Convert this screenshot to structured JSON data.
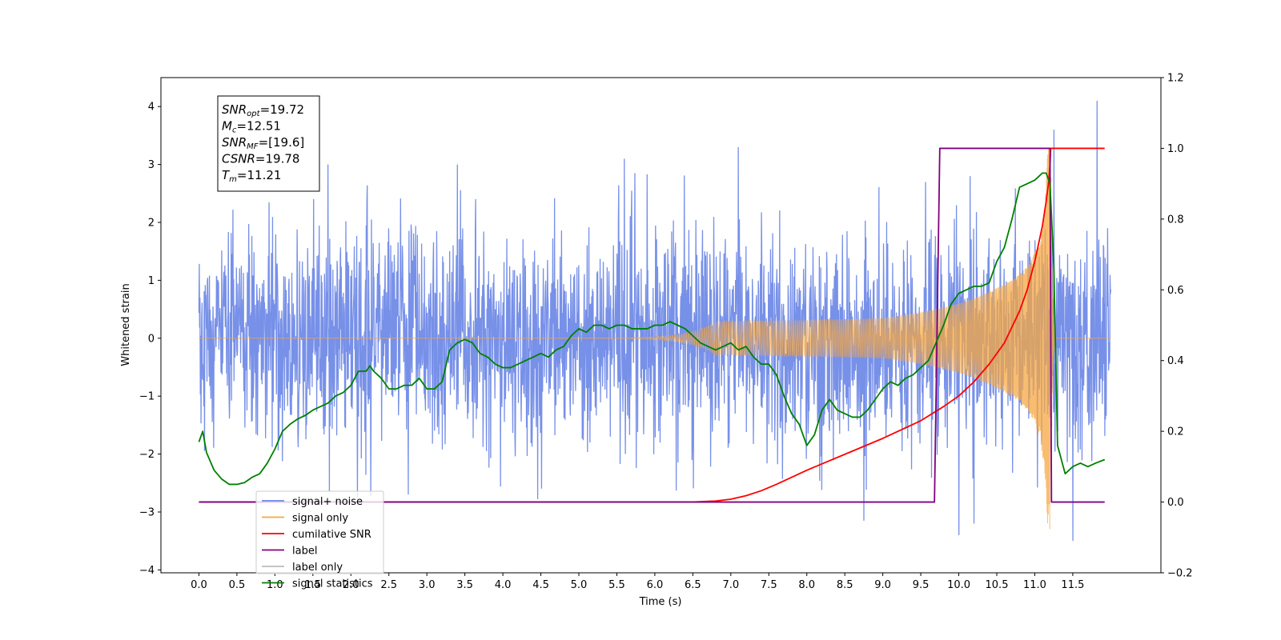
{
  "chart_data": {
    "type": "line",
    "title": "",
    "xlabel": "Time (s)",
    "ylabel": "Whitened strain",
    "ylabel_right": "",
    "xlim": [
      -0.5,
      12.66
    ],
    "ylim": [
      -4.05,
      4.5
    ],
    "ylim_right": [
      -0.2,
      1.2
    ],
    "x_ticks": [
      "0.0",
      "0.5",
      "1.0",
      "1.5",
      "2.0",
      "2.5",
      "3.0",
      "3.5",
      "4.0",
      "4.5",
      "5.0",
      "5.5",
      "6.0",
      "6.5",
      "7.0",
      "7.5",
      "8.0",
      "8.5",
      "9.0",
      "9.5",
      "10.0",
      "10.5",
      "11.0",
      "11.5"
    ],
    "y_ticks": [
      "−4",
      "−3",
      "−2",
      "−1",
      "0",
      "1",
      "2",
      "3",
      "4"
    ],
    "y_ticks_right": [
      "−0.2",
      "0.0",
      "0.2",
      "0.4",
      "0.6",
      "0.8",
      "1.0",
      "1.2"
    ],
    "grid": false,
    "legend_position": "lower-left",
    "annotation": {
      "lines": [
        {
          "base": "SNR",
          "sub": "opt",
          "rest": "=19.72"
        },
        {
          "base": "M",
          "sub": "c",
          "rest": "=12.51"
        },
        {
          "base": "SNR",
          "sub": "MF",
          "rest": "=[19.6]"
        },
        {
          "base": "CSNR",
          "sub": "",
          "rest": "=19.78"
        },
        {
          "base": "T",
          "sub": "m",
          "rest": "=11.21"
        }
      ]
    },
    "series": [
      {
        "name": "signal+ noise",
        "color": "#6b87e6",
        "axis": "left",
        "style": "noise",
        "t_start": 0.0,
        "t_end": 12.0,
        "sigma": 0.9,
        "peaks": [
          [
            1.7,
            3.0
          ],
          [
            3.4,
            3.0
          ],
          [
            5.6,
            3.1
          ],
          [
            7.1,
            3.3
          ],
          [
            10.15,
            2.8
          ],
          [
            11.25,
            3.6
          ],
          [
            11.82,
            4.1
          ],
          [
            10.0,
            -3.4
          ],
          [
            11.5,
            -3.5
          ],
          [
            8.75,
            -3.15
          ],
          [
            10.2,
            -3.2
          ]
        ]
      },
      {
        "name": "signal only",
        "color": "#f5a742",
        "axis": "left",
        "style": "chirp",
        "t_start": 0.0,
        "t_end": 12.0,
        "merger_time": 11.21,
        "peak_amplitude": 3.3
      },
      {
        "name": "cumilative SNR",
        "color": "#ff0000",
        "axis": "right",
        "x": [
          0.0,
          6.0,
          6.5,
          6.8,
          7.0,
          7.2,
          7.4,
          7.6,
          8.0,
          8.5,
          9.0,
          9.5,
          9.8,
          10.0,
          10.2,
          10.4,
          10.6,
          10.8,
          10.9,
          11.0,
          11.1,
          11.15,
          11.18,
          11.2,
          11.21,
          11.22,
          11.5,
          11.92
        ],
        "values": [
          0.0,
          0.0,
          0.0,
          0.003,
          0.008,
          0.018,
          0.032,
          0.05,
          0.09,
          0.135,
          0.18,
          0.23,
          0.27,
          0.3,
          0.34,
          0.39,
          0.45,
          0.54,
          0.6,
          0.68,
          0.78,
          0.85,
          0.9,
          0.95,
          1.0,
          1.0,
          1.0,
          1.0
        ]
      },
      {
        "name": "label",
        "color": "#800080",
        "axis": "right",
        "x": [
          0.0,
          9.68,
          9.75,
          11.2,
          11.22,
          11.92
        ],
        "values": [
          0.0,
          0.0,
          1.0,
          1.0,
          0.0,
          0.0
        ]
      },
      {
        "name": "label only",
        "color": "#bbbbbb",
        "axis": "right",
        "hidden": true,
        "x": [],
        "values": []
      },
      {
        "name": "signal statistics",
        "color": "#008000",
        "axis": "right",
        "x": [
          0.0,
          0.05,
          0.1,
          0.2,
          0.3,
          0.4,
          0.5,
          0.6,
          0.7,
          0.8,
          0.9,
          1.0,
          1.1,
          1.2,
          1.3,
          1.4,
          1.5,
          1.6,
          1.7,
          1.8,
          1.9,
          2.0,
          2.1,
          2.2,
          2.25,
          2.3,
          2.4,
          2.5,
          2.6,
          2.7,
          2.8,
          2.9,
          3.0,
          3.1,
          3.2,
          3.3,
          3.4,
          3.5,
          3.6,
          3.7,
          3.8,
          3.9,
          4.0,
          4.1,
          4.2,
          4.3,
          4.4,
          4.5,
          4.6,
          4.7,
          4.8,
          4.9,
          5.0,
          5.1,
          5.2,
          5.3,
          5.4,
          5.5,
          5.6,
          5.7,
          5.8,
          5.9,
          6.0,
          6.1,
          6.2,
          6.3,
          6.4,
          6.5,
          6.6,
          6.7,
          6.8,
          6.9,
          7.0,
          7.1,
          7.2,
          7.3,
          7.4,
          7.5,
          7.6,
          7.7,
          7.8,
          7.9,
          8.0,
          8.1,
          8.2,
          8.3,
          8.4,
          8.5,
          8.6,
          8.7,
          8.8,
          8.9,
          9.0,
          9.1,
          9.2,
          9.3,
          9.4,
          9.5,
          9.6,
          9.7,
          9.8,
          9.9,
          10.0,
          10.1,
          10.2,
          10.3,
          10.4,
          10.5,
          10.6,
          10.7,
          10.8,
          10.9,
          11.0,
          11.1,
          11.15,
          11.2,
          11.25,
          11.3,
          11.4,
          11.5,
          11.6,
          11.7,
          11.8,
          11.92
        ],
        "values": [
          0.17,
          0.2,
          0.14,
          0.09,
          0.065,
          0.05,
          0.05,
          0.055,
          0.07,
          0.08,
          0.11,
          0.15,
          0.2,
          0.22,
          0.235,
          0.245,
          0.26,
          0.27,
          0.28,
          0.3,
          0.31,
          0.33,
          0.37,
          0.37,
          0.385,
          0.37,
          0.35,
          0.32,
          0.32,
          0.33,
          0.33,
          0.35,
          0.32,
          0.32,
          0.34,
          0.43,
          0.45,
          0.46,
          0.45,
          0.42,
          0.41,
          0.39,
          0.38,
          0.38,
          0.39,
          0.4,
          0.41,
          0.42,
          0.41,
          0.43,
          0.44,
          0.47,
          0.49,
          0.48,
          0.5,
          0.5,
          0.49,
          0.5,
          0.5,
          0.49,
          0.49,
          0.49,
          0.5,
          0.5,
          0.51,
          0.5,
          0.49,
          0.47,
          0.45,
          0.44,
          0.43,
          0.44,
          0.45,
          0.43,
          0.44,
          0.41,
          0.39,
          0.39,
          0.36,
          0.3,
          0.25,
          0.22,
          0.16,
          0.19,
          0.26,
          0.29,
          0.26,
          0.25,
          0.24,
          0.24,
          0.26,
          0.29,
          0.32,
          0.34,
          0.33,
          0.35,
          0.36,
          0.38,
          0.4,
          0.45,
          0.5,
          0.56,
          0.59,
          0.6,
          0.61,
          0.61,
          0.62,
          0.68,
          0.72,
          0.8,
          0.89,
          0.9,
          0.91,
          0.93,
          0.93,
          0.9,
          0.67,
          0.16,
          0.08,
          0.1,
          0.11,
          0.1,
          0.11,
          0.12
        ]
      }
    ]
  }
}
